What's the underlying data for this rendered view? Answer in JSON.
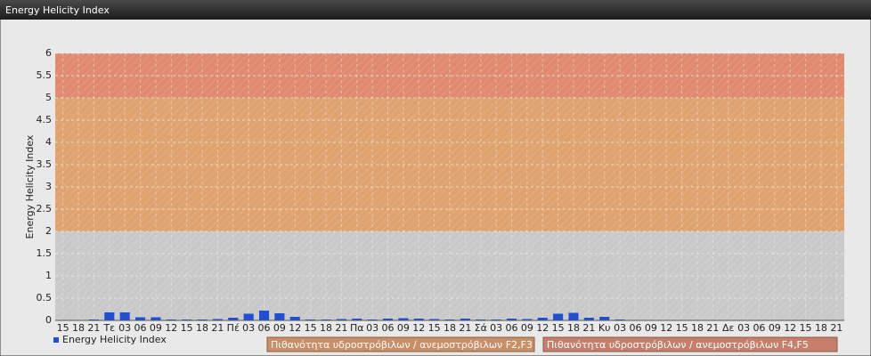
{
  "chart_data": {
    "type": "bar",
    "title": "Energy Helicity Index",
    "y_label": "Energy Helicity Index",
    "categories": [
      "15",
      "18",
      "21",
      "Τε",
      "03",
      "06",
      "09",
      "12",
      "15",
      "18",
      "21",
      "Πέ",
      "03",
      "06",
      "09",
      "12",
      "15",
      "18",
      "21",
      "Πα",
      "03",
      "06",
      "09",
      "12",
      "15",
      "18",
      "21",
      "Σά",
      "03",
      "06",
      "09",
      "12",
      "15",
      "18",
      "21",
      "Κυ",
      "03",
      "06",
      "09",
      "12",
      "15",
      "18",
      "21",
      "Δε",
      "03",
      "06",
      "09",
      "12",
      "15",
      "18",
      "21"
    ],
    "series": [
      {
        "name": "Energy Helicity Index",
        "color": "#1f4fd6",
        "values": [
          0.01,
          0.01,
          0.02,
          0.18,
          0.18,
          0.07,
          0.07,
          0.02,
          0.02,
          0.02,
          0.03,
          0.06,
          0.15,
          0.22,
          0.16,
          0.08,
          0.02,
          0.02,
          0.03,
          0.04,
          0.02,
          0.04,
          0.05,
          0.04,
          0.03,
          0.02,
          0.04,
          0.02,
          0.02,
          0.04,
          0.03,
          0.06,
          0.15,
          0.17,
          0.06,
          0.08,
          0.02,
          0.01,
          0.01,
          0.01,
          0.01,
          0.01,
          0.01,
          0.01,
          0.01,
          0.01,
          0.01,
          0.01,
          0.01,
          0.01,
          0.01
        ]
      }
    ],
    "bands": [
      {
        "from": 2,
        "to": 5,
        "color": "#dea36f",
        "legend_color": "#c88f68",
        "label": "Πιθανότητα υδροστρόβιλων / ανεμοστρόβιλων F2,F3"
      },
      {
        "from": 5,
        "to": 6,
        "color": "#e08a70",
        "legend_color": "#c57f6c",
        "label": "Πιθανότητα υδροστρόβιλων / ανεμοστρόβιλων F4,F5"
      }
    ],
    "ylim": [
      0,
      6
    ],
    "yticks": [
      0,
      0.5,
      1,
      1.5,
      2,
      2.5,
      3,
      3.5,
      4,
      4.5,
      5,
      5.5,
      6
    ],
    "grid": true
  }
}
